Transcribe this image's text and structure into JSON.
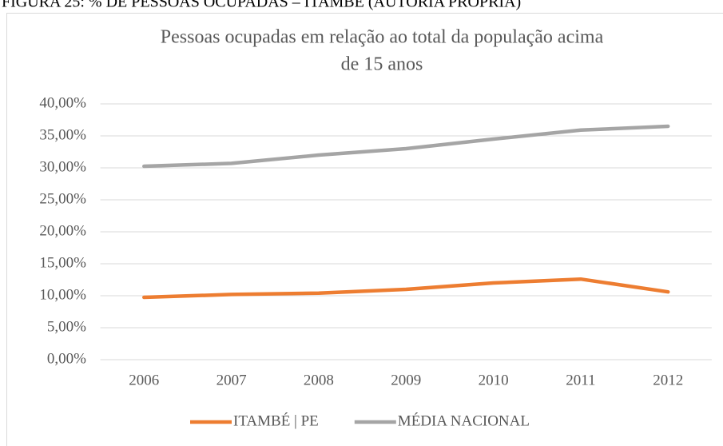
{
  "caption": "FIGURA 25: % DE PESSOAS OCUPADAS – ITAMBÉ (AUTORIA PRÓPRIA)",
  "chart_data": {
    "type": "line",
    "title": [
      "Pessoas ocupadas em relação ao total da população acima",
      "de 15 anos"
    ],
    "categories": [
      "2006",
      "2007",
      "2008",
      "2009",
      "2010",
      "2011",
      "2012"
    ],
    "series": [
      {
        "name": "ITAMBÉ | PE",
        "color": "#ed7d31",
        "values": [
          9.75,
          10.2,
          10.4,
          11,
          12,
          12.6,
          10.6
        ]
      },
      {
        "name": "MÉDIA NACIONAL",
        "color": "#a5a5a5",
        "values": [
          30.25,
          30.7,
          32,
          33,
          34.5,
          35.9,
          36.5
        ]
      }
    ],
    "ylim": [
      0,
      40
    ],
    "yticks": [
      {
        "value": 0,
        "label": "0,00%"
      },
      {
        "value": 5,
        "label": "5,00%"
      },
      {
        "value": 10,
        "label": "10,00%"
      },
      {
        "value": 15,
        "label": "15,00%"
      },
      {
        "value": 20,
        "label": "20,00%"
      },
      {
        "value": 25,
        "label": "25,00%"
      },
      {
        "value": 30,
        "label": "30,00%"
      },
      {
        "value": 35,
        "label": "35,00%"
      },
      {
        "value": 40,
        "label": "40,00%"
      }
    ],
    "grid": true,
    "legend": "bottom"
  }
}
